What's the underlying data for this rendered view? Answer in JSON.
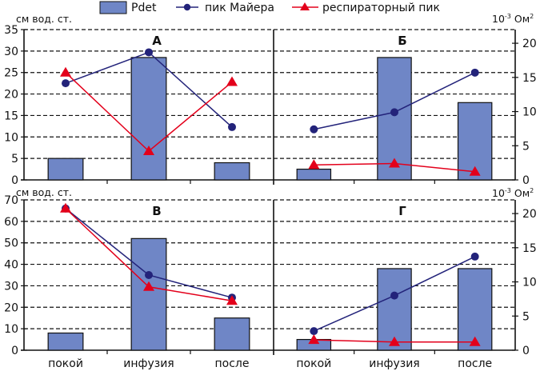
{
  "chart_data": {
    "type": "bar",
    "legend": {
      "placement": "top",
      "entries": [
        {
          "name": "Pdet",
          "kind": "bar",
          "color": "#6f86c6"
        },
        {
          "name": "пик Майера",
          "kind": "line-circle",
          "color": "#23237a"
        },
        {
          "name": "респираторный пик",
          "kind": "line-triangle",
          "color": "#e3001b"
        }
      ]
    },
    "categories": [
      "покой",
      "инфузия",
      "после"
    ],
    "grid": true,
    "panels": [
      {
        "id": "A",
        "title": "А",
        "row": "top",
        "col": "left",
        "left_axis": {
          "label": "см вод. ст.",
          "ylim": [
            0,
            35
          ],
          "ticks": [
            0,
            5,
            10,
            15,
            20,
            25,
            30,
            35
          ]
        },
        "series": [
          {
            "name": "Pdet",
            "type": "bar",
            "axis": "left",
            "values": [
              5,
              28.5,
              4
            ]
          },
          {
            "name": "пик Майера",
            "type": "line",
            "axis": "left",
            "values": [
              22.5,
              29.7,
              12.3
            ]
          },
          {
            "name": "респираторный пик",
            "type": "line",
            "axis": "left",
            "values": [
              25,
              6.7,
              22.8
            ]
          }
        ]
      },
      {
        "id": "B",
        "title": "Б",
        "row": "top",
        "col": "right",
        "right_axis": {
          "label": "10-3 Ом2",
          "label_main": "10",
          "label_sup": "-3",
          "label_unit": " Ом",
          "label_unit_sup": "2",
          "ylim": [
            0,
            22
          ],
          "ticks": [
            0,
            5,
            10,
            15,
            20
          ]
        },
        "series": [
          {
            "name": "Pdet",
            "type": "bar",
            "axis": "left",
            "values": [
              2.5,
              28.5,
              18
            ]
          },
          {
            "name": "пик Майера",
            "type": "line",
            "axis": "right",
            "values": [
              7.4,
              9.9,
              15.7
            ]
          },
          {
            "name": "респираторный пик",
            "type": "line",
            "axis": "right",
            "values": [
              2.2,
              2.4,
              1.2
            ]
          }
        ]
      },
      {
        "id": "V",
        "title": "В",
        "row": "bottom",
        "col": "left",
        "left_axis": {
          "label": "см вод. ст.",
          "ylim": [
            0,
            70
          ],
          "ticks": [
            0,
            10,
            20,
            30,
            40,
            50,
            60,
            70
          ]
        },
        "series": [
          {
            "name": "Pdet",
            "type": "bar",
            "axis": "left",
            "values": [
              8,
              52,
              15
            ]
          },
          {
            "name": "пик Майера",
            "type": "line",
            "axis": "left",
            "values": [
              66,
              35,
              24.5
            ]
          },
          {
            "name": "респираторный пик",
            "type": "line",
            "axis": "left",
            "values": [
              66,
              29.5,
              23
            ]
          }
        ]
      },
      {
        "id": "G",
        "title": "Г",
        "row": "bottom",
        "col": "right",
        "right_axis": {
          "label": "10-3 Ом2",
          "label_main": "10",
          "label_sup": "-3",
          "label_unit": " Ом",
          "label_unit_sup": "2",
          "ylim": [
            0,
            22
          ],
          "ticks": [
            0,
            5,
            10,
            15,
            20
          ]
        },
        "series": [
          {
            "name": "Pdet",
            "type": "bar",
            "axis": "left",
            "values": [
              5,
              38,
              38
            ]
          },
          {
            "name": "пик Майера",
            "type": "line",
            "axis": "right",
            "values": [
              2.8,
              8.0,
              13.7
            ]
          },
          {
            "name": "респираторный пик",
            "type": "line",
            "axis": "right",
            "values": [
              1.5,
              1.2,
              1.2
            ]
          }
        ]
      }
    ]
  }
}
